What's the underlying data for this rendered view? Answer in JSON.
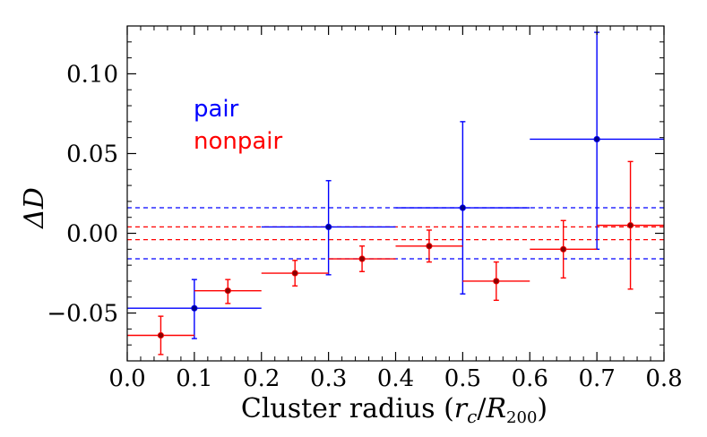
{
  "chart_data": {
    "type": "scatter",
    "title": "",
    "xlabel": "Cluster radius (r_c / R_200)",
    "ylabel": "ΔD",
    "xlim": [
      0.0,
      0.8
    ],
    "ylim": [
      -0.08,
      0.13
    ],
    "x_ticks": [
      0.0,
      0.1,
      0.2,
      0.3,
      0.4,
      0.5,
      0.6,
      0.7,
      0.8
    ],
    "x_tick_labels": [
      "0.0",
      "0.1",
      "0.2",
      "0.3",
      "0.4",
      "0.5",
      "0.6",
      "0.7",
      "0.8"
    ],
    "y_ticks": [
      -0.05,
      0.0,
      0.05,
      0.1
    ],
    "y_tick_labels": [
      "−0.05",
      "0.00",
      "0.05",
      "0.10"
    ],
    "legend_position": "upper-left",
    "series": [
      {
        "name": "pair",
        "color": "#0000ff",
        "points": [
          {
            "x": 0.1,
            "y": -0.047,
            "xerr_low": 0.1,
            "xerr_high": 0.1,
            "yerr_low": 0.019,
            "yerr_high": 0.018
          },
          {
            "x": 0.3,
            "y": 0.004,
            "xerr_low": 0.1,
            "xerr_high": 0.1,
            "yerr_low": 0.03,
            "yerr_high": 0.029
          },
          {
            "x": 0.5,
            "y": 0.016,
            "xerr_low": 0.1,
            "xerr_high": 0.1,
            "yerr_low": 0.054,
            "yerr_high": 0.054
          },
          {
            "x": 0.7,
            "y": 0.059,
            "xerr_low": 0.1,
            "xerr_high": 0.1,
            "yerr_low": 0.069,
            "yerr_high": 0.067
          }
        ],
        "hlines": [
          0.016,
          -0.016
        ]
      },
      {
        "name": "nonpair",
        "color": "#ff0000",
        "points": [
          {
            "x": 0.05,
            "y": -0.064,
            "xerr_low": 0.05,
            "xerr_high": 0.05,
            "yerr_low": 0.012,
            "yerr_high": 0.012
          },
          {
            "x": 0.15,
            "y": -0.036,
            "xerr_low": 0.05,
            "xerr_high": 0.05,
            "yerr_low": 0.008,
            "yerr_high": 0.007
          },
          {
            "x": 0.25,
            "y": -0.025,
            "xerr_low": 0.05,
            "xerr_high": 0.05,
            "yerr_low": 0.008,
            "yerr_high": 0.008
          },
          {
            "x": 0.35,
            "y": -0.016,
            "xerr_low": 0.05,
            "xerr_high": 0.05,
            "yerr_low": 0.008,
            "yerr_high": 0.008
          },
          {
            "x": 0.45,
            "y": -0.008,
            "xerr_low": 0.05,
            "xerr_high": 0.05,
            "yerr_low": 0.01,
            "yerr_high": 0.01
          },
          {
            "x": 0.55,
            "y": -0.03,
            "xerr_low": 0.05,
            "xerr_high": 0.05,
            "yerr_low": 0.012,
            "yerr_high": 0.012
          },
          {
            "x": 0.65,
            "y": -0.01,
            "xerr_low": 0.05,
            "xerr_high": 0.05,
            "yerr_low": 0.018,
            "yerr_high": 0.018
          },
          {
            "x": 0.75,
            "y": 0.005,
            "xerr_low": 0.05,
            "xerr_high": 0.05,
            "yerr_low": 0.04,
            "yerr_high": 0.04
          }
        ],
        "hlines": [
          0.004,
          -0.004
        ]
      }
    ]
  }
}
